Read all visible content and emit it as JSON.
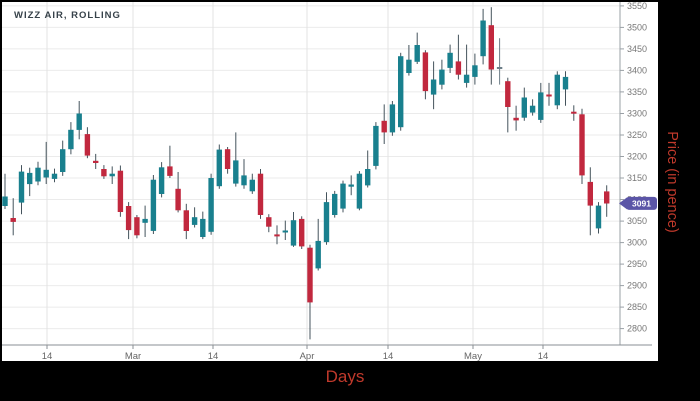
{
  "title": "WIZZ AIR, ROLLING",
  "axes": {
    "x_label": "Days",
    "y_label": "Price (in pence)",
    "x_ticks": [
      {
        "label": "14",
        "px": 45
      },
      {
        "label": "Mar",
        "px": 131
      },
      {
        "label": "14",
        "px": 211
      },
      {
        "label": "Apr",
        "px": 305
      },
      {
        "label": "14",
        "px": 386
      },
      {
        "label": "May",
        "px": 471
      },
      {
        "label": "14",
        "px": 541
      }
    ],
    "y_min": 2800,
    "y_max": 3550,
    "y_step": 50
  },
  "last_price": {
    "value": "3091"
  },
  "colors": {
    "up": "#19808E",
    "down": "#C1283E",
    "neutral": "#6D7E88",
    "wick": "#44535C",
    "badge": "#5B55A7",
    "badge_text": "#FFFFFF",
    "grid_h": "#EBEBEB",
    "grid_v": "#E3E3E3",
    "axis_line": "#9AA0A6",
    "tick_text": "#777777",
    "axis_title_red": "#C0392B",
    "title_text": "#37424A"
  },
  "chart_data": {
    "type": "candlestick",
    "title": "WIZZ AIR, ROLLING",
    "xlabel": "Days",
    "ylabel": "Price (in pence)",
    "x_tick_labels": [
      "14",
      "Mar",
      "14",
      "Apr",
      "14",
      "May",
      "14"
    ],
    "y_axis_range": [
      2800,
      3550
    ],
    "y_axis_step": 50,
    "plot_price_top": 3559,
    "plot_price_bottom": 2762,
    "last_close": 3091,
    "neutral_index": 60,
    "legend_position": "none",
    "grid": true,
    "candles_ohlc": [
      [
        3085,
        3160,
        3078,
        3107
      ],
      [
        3057,
        3103,
        3017,
        3048
      ],
      [
        3093,
        3180,
        3066,
        3165
      ],
      [
        3136,
        3174,
        3108,
        3162
      ],
      [
        3142,
        3188,
        3133,
        3174
      ],
      [
        3151,
        3234,
        3136,
        3169
      ],
      [
        3148,
        3172,
        3140,
        3160
      ],
      [
        3164,
        3237,
        3155,
        3217
      ],
      [
        3217,
        3280,
        3205,
        3262
      ],
      [
        3262,
        3329,
        3240,
        3300
      ],
      [
        3252,
        3268,
        3196,
        3202
      ],
      [
        3190,
        3206,
        3171,
        3185
      ],
      [
        3171,
        3180,
        3148,
        3154
      ],
      [
        3154,
        3177,
        3136,
        3160
      ],
      [
        3167,
        3179,
        3060,
        3071
      ],
      [
        3085,
        3094,
        3008,
        3029
      ],
      [
        3059,
        3064,
        3010,
        3017
      ],
      [
        3046,
        3086,
        3013,
        3055
      ],
      [
        3027,
        3157,
        3020,
        3146
      ],
      [
        3113,
        3187,
        3105,
        3175
      ],
      [
        3177,
        3225,
        3150,
        3155
      ],
      [
        3125,
        3164,
        3070,
        3075
      ],
      [
        3075,
        3090,
        3008,
        3027
      ],
      [
        3041,
        3082,
        3035,
        3059
      ],
      [
        3013,
        3072,
        3008,
        3055
      ],
      [
        3025,
        3160,
        3018,
        3150
      ],
      [
        3131,
        3228,
        3125,
        3216
      ],
      [
        3217,
        3222,
        3160,
        3171
      ],
      [
        3137,
        3256,
        3130,
        3191
      ],
      [
        3133,
        3194,
        3125,
        3156
      ],
      [
        3119,
        3160,
        3113,
        3146
      ],
      [
        3160,
        3171,
        3055,
        3064
      ],
      [
        3059,
        3066,
        3024,
        3037
      ],
      [
        3019,
        3040,
        2996,
        3015
      ],
      [
        3024,
        3051,
        3006,
        3028
      ],
      [
        2993,
        3071,
        2990,
        3052
      ],
      [
        3055,
        3061,
        2985,
        2991
      ],
      [
        2988,
        2995,
        2775,
        2861
      ],
      [
        2940,
        3055,
        2935,
        3004
      ],
      [
        3001,
        3117,
        2995,
        3094
      ],
      [
        3064,
        3120,
        3058,
        3113
      ],
      [
        3079,
        3144,
        3070,
        3137
      ],
      [
        3130,
        3156,
        3110,
        3135
      ],
      [
        3079,
        3166,
        3075,
        3160
      ],
      [
        3133,
        3214,
        3128,
        3171
      ],
      [
        3178,
        3280,
        3170,
        3271
      ],
      [
        3283,
        3321,
        3229,
        3256
      ],
      [
        3256,
        3329,
        3248,
        3321
      ],
      [
        3268,
        3441,
        3260,
        3433
      ],
      [
        3394,
        3459,
        3388,
        3425
      ],
      [
        3420,
        3488,
        3415,
        3459
      ],
      [
        3442,
        3447,
        3333,
        3352
      ],
      [
        3344,
        3421,
        3310,
        3379
      ],
      [
        3367,
        3425,
        3356,
        3402
      ],
      [
        3406,
        3460,
        3394,
        3441
      ],
      [
        3421,
        3483,
        3379,
        3390
      ],
      [
        3371,
        3460,
        3360,
        3390
      ],
      [
        3385,
        3439,
        3367,
        3412
      ],
      [
        3433,
        3543,
        3414,
        3516
      ],
      [
        3505,
        3547,
        3367,
        3402
      ],
      [
        3408,
        3475,
        3367,
        3408
      ],
      [
        3375,
        3383,
        3256,
        3315
      ],
      [
        3290,
        3318,
        3260,
        3284
      ],
      [
        3290,
        3360,
        3283,
        3337
      ],
      [
        3302,
        3333,
        3295,
        3318
      ],
      [
        3285,
        3371,
        3278,
        3349
      ],
      [
        3344,
        3371,
        3318,
        3342
      ],
      [
        3319,
        3398,
        3310,
        3390
      ],
      [
        3356,
        3398,
        3318,
        3385
      ],
      [
        3304,
        3319,
        3283,
        3302
      ],
      [
        3298,
        3311,
        3136,
        3156
      ],
      [
        3141,
        3175,
        3017,
        3086
      ],
      [
        3033,
        3094,
        3021,
        3086
      ],
      [
        3119,
        3133,
        3060,
        3091
      ]
    ]
  }
}
